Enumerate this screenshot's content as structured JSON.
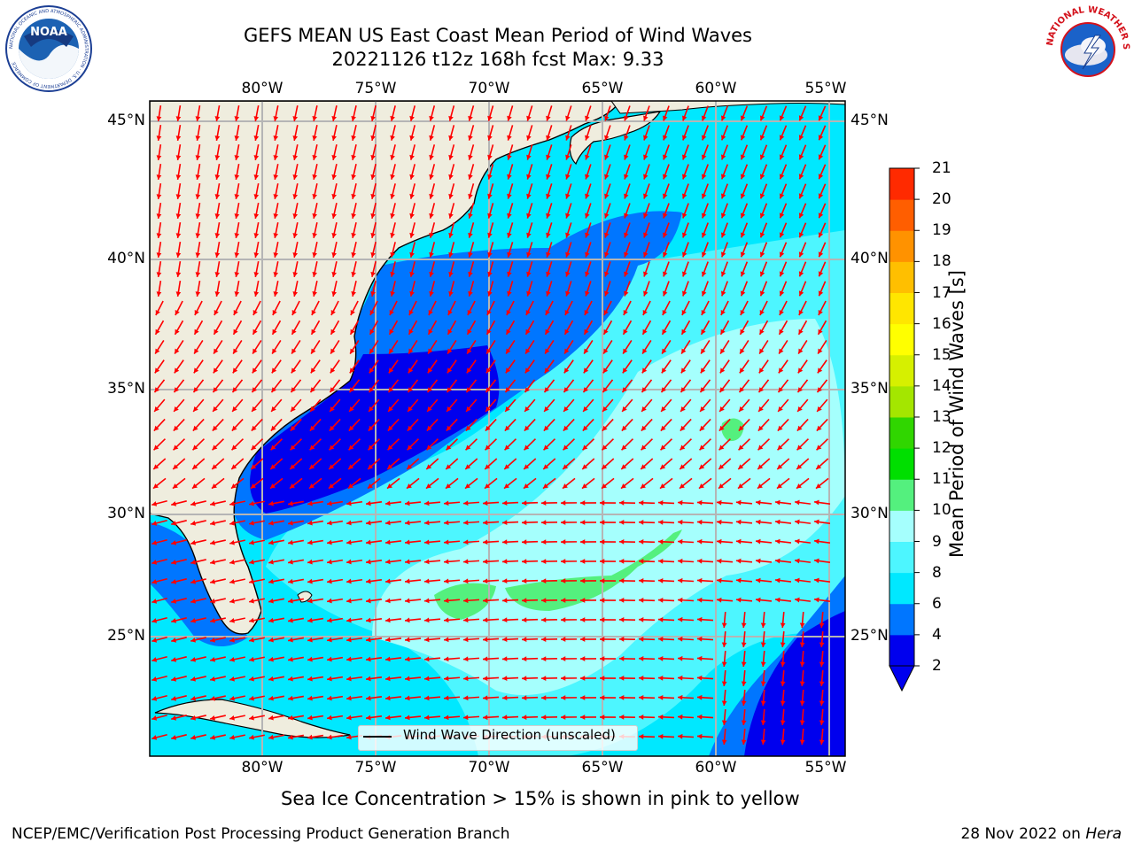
{
  "title": {
    "line1": "GEFS MEAN US East Coast Mean Period of Wind Waves",
    "line2": "20221126 t12z 168h fcst   Max: 9.33"
  },
  "axes": {
    "lon_ticks": [
      "80°W",
      "75°W",
      "70°W",
      "65°W",
      "60°W",
      "55°W"
    ],
    "lat_ticks": [
      "45°N",
      "40°N",
      "35°N",
      "30°N",
      "25°N"
    ]
  },
  "colorbar": {
    "label": "Mean Period of Wind Waves [s]",
    "ticks": [
      "2",
      "4",
      "6",
      "8",
      "9",
      "10",
      "11",
      "12",
      "13",
      "14",
      "15",
      "16",
      "17",
      "18",
      "19",
      "20",
      "21"
    ],
    "colors": [
      "#0000ee",
      "#0076ff",
      "#00e8ff",
      "#4df6ff",
      "#a5fffd",
      "#54f07e",
      "#00df00",
      "#30d600",
      "#a4e600",
      "#d6f000",
      "#ffff00",
      "#ffe600",
      "#ffbf00",
      "#ff9200",
      "#ff5e00",
      "#ff2a00",
      "#ff0000"
    ]
  },
  "legend": {
    "label": "Wind Wave Direction (unscaled)"
  },
  "note": "Sea Ice Concentration > 15% is shown in pink to yellow",
  "footer": {
    "left": "NCEP/EMC/Verification Post Processing Product Generation Branch",
    "date": "28 Nov 2022 on ",
    "machine": "Hera"
  },
  "logos": {
    "left": {
      "name": "noaa-logo",
      "text": "NOAA",
      "ring_text": "NATIONAL OCEANIC AND ATMOSPHERIC ADMINISTRATION · U.S. DEPARTMENT OF COMMERCE"
    },
    "right": {
      "name": "nws-logo",
      "ring_text": "NATIONAL WEATHER SERVICE"
    }
  },
  "colors": {
    "land": "#efedde",
    "arrow": "#ff0000",
    "grid": "#b5b5b5"
  }
}
